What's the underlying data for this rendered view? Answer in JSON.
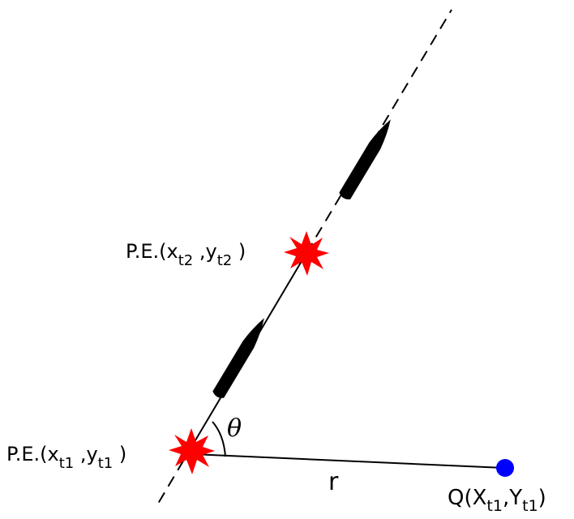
{
  "labels": {
    "pe_t1": {
      "prefix": "P.E.(x",
      "sub_x": "t1",
      "sep": " ,y",
      "sub_y": "t1",
      "suffix": " )"
    },
    "pe_t2": {
      "prefix": "P.E.(x",
      "sub_x": "t2",
      "sep": " ,y",
      "sub_y": "t2",
      "suffix": " )"
    },
    "theta": "θ",
    "r": "r",
    "q": {
      "prefix": "Q(X",
      "sub_x": "t1",
      "sep": ",Y",
      "sub_y": "t1",
      "suffix": ")"
    }
  },
  "colors": {
    "burst": "#ff0000",
    "point_q": "#0000ff",
    "projectile": "#000000"
  }
}
